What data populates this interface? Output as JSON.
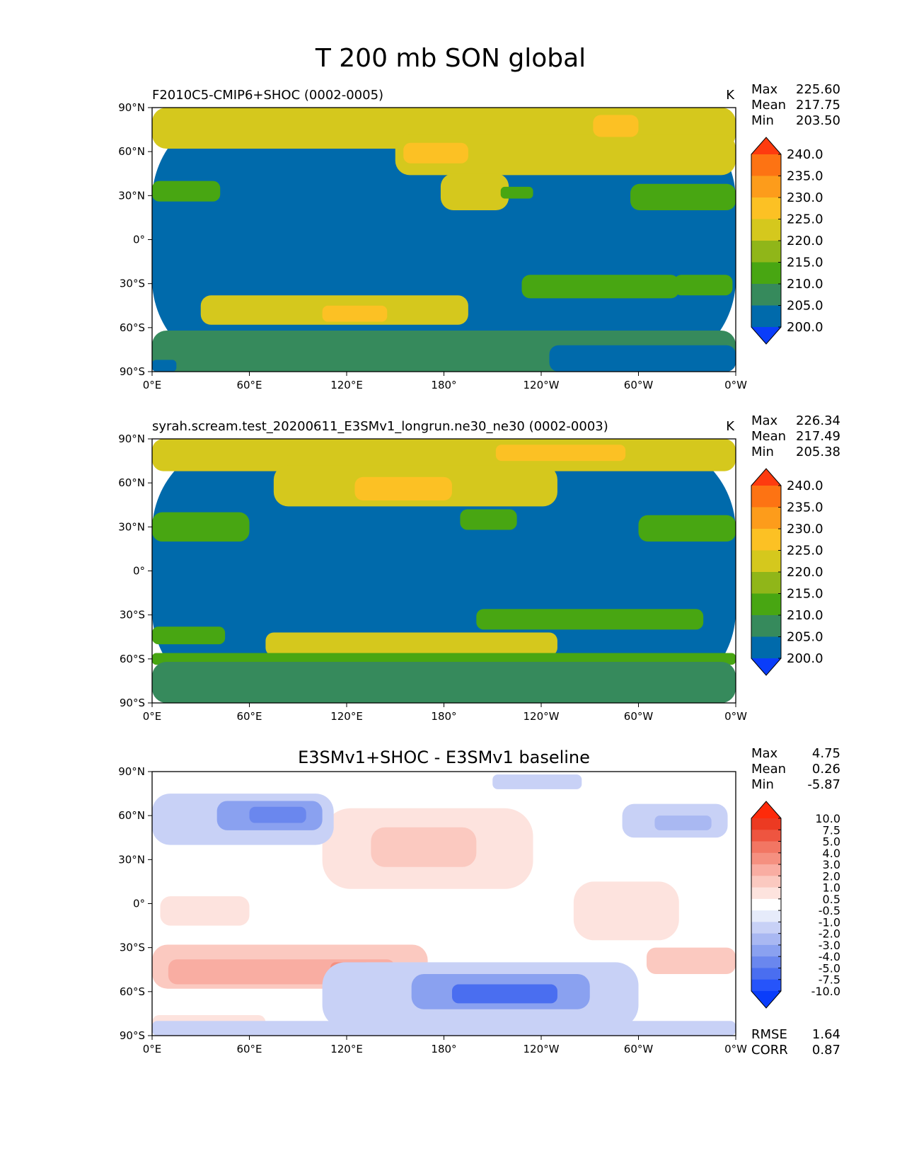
{
  "figure": {
    "title": "T 200 mb SON global"
  },
  "chart_data": [
    {
      "type": "heatmap",
      "title": "F2010C5-CMIP6+SHOC (0002-0005)",
      "units": "K",
      "stats": [
        {
          "label": "Max",
          "value": "225.60"
        },
        {
          "label": "Mean",
          "value": "217.75"
        },
        {
          "label": "Min",
          "value": "203.50"
        }
      ],
      "x_ticks": [
        "0°E",
        "60°E",
        "120°E",
        "180°",
        "120°W",
        "60°W",
        "0°W"
      ],
      "y_ticks": [
        "90°N",
        "60°N",
        "30°N",
        "0°",
        "30°S",
        "60°S",
        "90°S"
      ],
      "xlim": [
        0,
        360
      ],
      "ylim": [
        -90,
        90
      ],
      "colorbar": {
        "levels": [
          "200.0",
          "205.0",
          "210.0",
          "215.0",
          "220.0",
          "225.0",
          "230.0",
          "235.0",
          "240.0"
        ],
        "colors": [
          "#0a3dfa",
          "#006aab",
          "#368a5c",
          "#48a612",
          "#90b619",
          "#d5c81d",
          "#fcc124",
          "#fd9c1b",
          "#fd7313",
          "#fe3b0f"
        ]
      },
      "regions": [
        {
          "level": 1,
          "lon": [
            0,
            360
          ],
          "lat": [
            -90,
            90
          ]
        },
        {
          "level": 5,
          "lon": [
            0,
            360
          ],
          "lat": [
            62,
            90
          ]
        },
        {
          "level": 5,
          "lon": [
            150,
            360
          ],
          "lat": [
            44,
            72
          ]
        },
        {
          "level": 5,
          "lon": [
            178,
            220
          ],
          "lat": [
            20,
            45
          ]
        },
        {
          "level": 6,
          "lon": [
            272,
            300
          ],
          "lat": [
            70,
            85
          ]
        },
        {
          "level": 6,
          "lon": [
            155,
            195
          ],
          "lat": [
            52,
            66
          ]
        },
        {
          "level": 3,
          "lon": [
            0,
            42
          ],
          "lat": [
            26,
            40
          ]
        },
        {
          "level": 3,
          "lon": [
            215,
            235
          ],
          "lat": [
            28,
            36
          ]
        },
        {
          "level": 3,
          "lon": [
            295,
            360
          ],
          "lat": [
            20,
            38
          ]
        },
        {
          "level": 3,
          "lon": [
            228,
            325
          ],
          "lat": [
            -40,
            -24
          ]
        },
        {
          "level": 3,
          "lon": [
            322,
            358
          ],
          "lat": [
            -38,
            -24
          ]
        },
        {
          "level": 5,
          "lon": [
            30,
            195
          ],
          "lat": [
            -58,
            -38
          ]
        },
        {
          "level": 6,
          "lon": [
            105,
            145
          ],
          "lat": [
            -56,
            -45
          ]
        },
        {
          "level": 0,
          "lon": [
            0,
            360
          ],
          "lat": [
            -90,
            -68
          ]
        },
        {
          "level": 2,
          "lon": [
            0,
            360
          ],
          "lat": [
            -90,
            -62
          ]
        },
        {
          "level": 1,
          "lon": [
            245,
            360
          ],
          "lat": [
            -90,
            -72
          ]
        },
        {
          "level": 1,
          "lon": [
            0,
            15
          ],
          "lat": [
            -90,
            -82
          ]
        }
      ]
    },
    {
      "type": "heatmap",
      "title": "syrah.scream.test_20200611_E3SMv1_longrun.ne30_ne30 (0002-0003)",
      "units": "K",
      "stats": [
        {
          "label": "Max",
          "value": "226.34"
        },
        {
          "label": "Mean",
          "value": "217.49"
        },
        {
          "label": "Min",
          "value": "205.38"
        }
      ],
      "x_ticks": [
        "0°E",
        "60°E",
        "120°E",
        "180°",
        "120°W",
        "60°W",
        "0°W"
      ],
      "y_ticks": [
        "90°N",
        "60°N",
        "30°N",
        "0°",
        "30°S",
        "60°S",
        "90°S"
      ],
      "xlim": [
        0,
        360
      ],
      "ylim": [
        -90,
        90
      ],
      "colorbar": {
        "levels": [
          "200.0",
          "205.0",
          "210.0",
          "215.0",
          "220.0",
          "225.0",
          "230.0",
          "235.0",
          "240.0"
        ],
        "colors": [
          "#0a3dfa",
          "#006aab",
          "#368a5c",
          "#48a612",
          "#90b619",
          "#d5c81d",
          "#fcc124",
          "#fd9c1b",
          "#fd7313",
          "#fe3b0f"
        ]
      },
      "regions": [
        {
          "level": 1,
          "lon": [
            0,
            360
          ],
          "lat": [
            -90,
            90
          ]
        },
        {
          "level": 5,
          "lon": [
            0,
            360
          ],
          "lat": [
            68,
            90
          ]
        },
        {
          "level": 5,
          "lon": [
            75,
            250
          ],
          "lat": [
            44,
            72
          ]
        },
        {
          "level": 6,
          "lon": [
            125,
            185
          ],
          "lat": [
            48,
            64
          ]
        },
        {
          "level": 6,
          "lon": [
            212,
            292
          ],
          "lat": [
            75,
            86
          ]
        },
        {
          "level": 3,
          "lon": [
            0,
            60
          ],
          "lat": [
            20,
            40
          ]
        },
        {
          "level": 3,
          "lon": [
            190,
            225
          ],
          "lat": [
            28,
            42
          ]
        },
        {
          "level": 3,
          "lon": [
            300,
            360
          ],
          "lat": [
            20,
            38
          ]
        },
        {
          "level": 3,
          "lon": [
            200,
            340
          ],
          "lat": [
            -40,
            -26
          ]
        },
        {
          "level": 3,
          "lon": [
            0,
            45
          ],
          "lat": [
            -50,
            -38
          ]
        },
        {
          "level": 5,
          "lon": [
            70,
            250
          ],
          "lat": [
            -58,
            -42
          ]
        },
        {
          "level": 3,
          "lon": [
            0,
            360
          ],
          "lat": [
            -64,
            -56
          ]
        },
        {
          "level": 2,
          "lon": [
            0,
            360
          ],
          "lat": [
            -90,
            -62
          ]
        }
      ]
    },
    {
      "type": "heatmap",
      "title": "E3SMv1+SHOC - E3SMv1 baseline",
      "units": "",
      "stats": [
        {
          "label": "Max",
          "value": "4.75"
        },
        {
          "label": "Mean",
          "value": "0.26"
        },
        {
          "label": "Min",
          "value": "-5.87"
        }
      ],
      "metrics": [
        {
          "label": "RMSE",
          "value": "1.64"
        },
        {
          "label": "CORR",
          "value": "0.87"
        }
      ],
      "x_ticks": [
        "0°E",
        "60°E",
        "120°E",
        "180°",
        "120°W",
        "60°W",
        "0°W"
      ],
      "y_ticks": [
        "90°N",
        "60°N",
        "30°N",
        "0°",
        "30°S",
        "60°S",
        "90°S"
      ],
      "xlim": [
        0,
        360
      ],
      "ylim": [
        -90,
        90
      ],
      "colorbar": {
        "levels": [
          "-10.0",
          "-7.5",
          "-5.0",
          "-4.0",
          "-3.0",
          "-2.0",
          "-1.0",
          "-0.5",
          "0.5",
          "1.0",
          "2.0",
          "3.0",
          "4.0",
          "5.0",
          "7.5",
          "10.0"
        ],
        "colors": [
          "#0a3dfa",
          "#2654fa",
          "#4a6ef0",
          "#6a87ee",
          "#8aa1f0",
          "#a9b8f2",
          "#c8d1f6",
          "#e6ebfa",
          "#ffffff",
          "#fde3de",
          "#fbc9c0",
          "#f9ada2",
          "#f59080",
          "#f27663",
          "#ee5540",
          "#ec3a22",
          "#fe2a0a"
        ]
      },
      "regions": [
        {
          "level": 8,
          "lon": [
            0,
            360
          ],
          "lat": [
            -90,
            90
          ]
        },
        {
          "level": 9,
          "lon": [
            105,
            235
          ],
          "lat": [
            10,
            65
          ]
        },
        {
          "level": 10,
          "lon": [
            135,
            200
          ],
          "lat": [
            25,
            52
          ]
        },
        {
          "level": 9,
          "lon": [
            260,
            325
          ],
          "lat": [
            -25,
            15
          ]
        },
        {
          "level": 9,
          "lon": [
            5,
            60
          ],
          "lat": [
            -15,
            5
          ]
        },
        {
          "level": 6,
          "lon": [
            0,
            112
          ],
          "lat": [
            40,
            75
          ]
        },
        {
          "level": 4,
          "lon": [
            40,
            105
          ],
          "lat": [
            50,
            70
          ]
        },
        {
          "level": 3,
          "lon": [
            60,
            95
          ],
          "lat": [
            55,
            66
          ]
        },
        {
          "level": 6,
          "lon": [
            210,
            265
          ],
          "lat": [
            78,
            88
          ]
        },
        {
          "level": 6,
          "lon": [
            290,
            355
          ],
          "lat": [
            45,
            68
          ]
        },
        {
          "level": 5,
          "lon": [
            310,
            345
          ],
          "lat": [
            50,
            60
          ]
        },
        {
          "level": 10,
          "lon": [
            0,
            170
          ],
          "lat": [
            -58,
            -28
          ]
        },
        {
          "level": 11,
          "lon": [
            10,
            150
          ],
          "lat": [
            -55,
            -38
          ]
        },
        {
          "level": 12,
          "lon": [
            110,
            135
          ],
          "lat": [
            -50,
            -40
          ]
        },
        {
          "level": 10,
          "lon": [
            305,
            360
          ],
          "lat": [
            -48,
            -30
          ]
        },
        {
          "level": 9,
          "lon": [
            0,
            70
          ],
          "lat": [
            -90,
            -76
          ]
        },
        {
          "level": 6,
          "lon": [
            105,
            300
          ],
          "lat": [
            -85,
            -40
          ]
        },
        {
          "level": 4,
          "lon": [
            160,
            270
          ],
          "lat": [
            -72,
            -48
          ]
        },
        {
          "level": 2,
          "lon": [
            185,
            250
          ],
          "lat": [
            -68,
            -55
          ]
        },
        {
          "level": 6,
          "lon": [
            0,
            360
          ],
          "lat": [
            -90,
            -80
          ]
        }
      ]
    }
  ]
}
